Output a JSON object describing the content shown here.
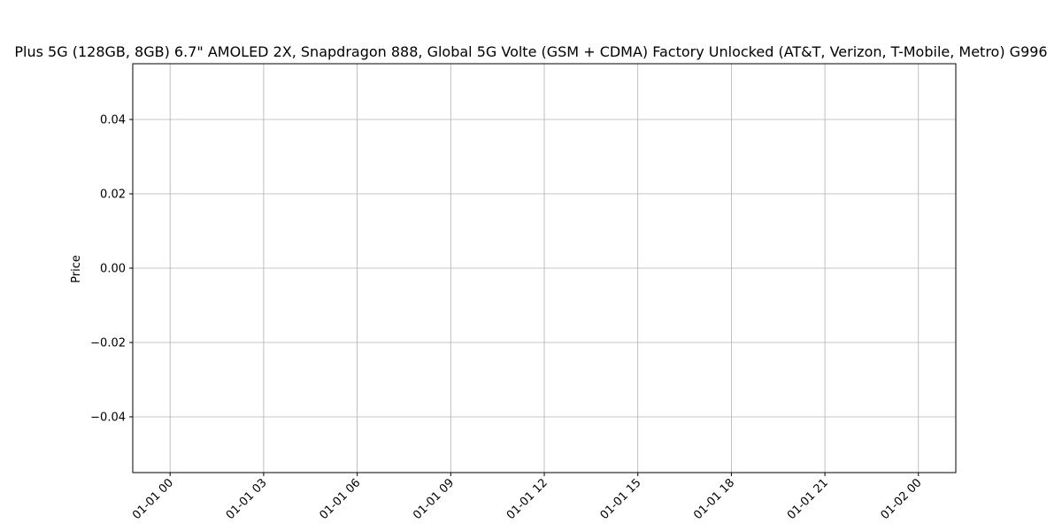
{
  "chart_data": {
    "type": "line",
    "title": "Plus 5G (128GB, 8GB) 6.7\" AMOLED 2X, Snapdragon 888, Global 5G Volte (GSM + CDMA) Factory Unlocked (AT&T, Verizon, T-Mobile, Metro) G996",
    "xlabel": "",
    "ylabel": "Price",
    "x_ticks": [
      "01-01 00",
      "01-01 03",
      "01-01 06",
      "01-01 09",
      "01-01 12",
      "01-01 15",
      "01-01 18",
      "01-01 21",
      "01-02 00"
    ],
    "y_ticks": [
      "0.04",
      "0.02",
      "0.00",
      "−0.02",
      "−0.04"
    ],
    "y_tick_values": [
      0.04,
      0.02,
      0.0,
      -0.02,
      -0.04
    ],
    "ylim": [
      -0.055,
      0.055
    ],
    "grid": true,
    "series": []
  }
}
